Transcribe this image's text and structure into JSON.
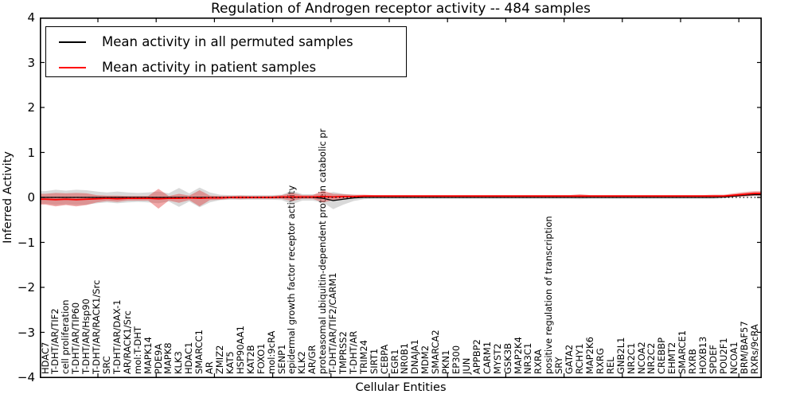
{
  "title": "Regulation of Androgen receptor activity -- 484 samples",
  "legend": {
    "items": [
      {
        "label": "Mean activity in all permuted samples",
        "color": "#000000"
      },
      {
        "label": "Mean activity in patient samples",
        "color": "#ff0000"
      }
    ]
  },
  "axes": {
    "ylabel": "Inferred Activity",
    "xlabel": "Cellular Entities",
    "yticks": [
      "4",
      "3",
      "2",
      "1",
      "0",
      "−1",
      "−2",
      "−3",
      "−4"
    ],
    "ylim": [
      -4,
      4
    ]
  },
  "chart_data": {
    "type": "line",
    "title": "Regulation of Androgen receptor activity -- 484 samples",
    "xlabel": "Cellular Entities",
    "ylabel": "Inferred Activity",
    "ylim": [
      -4,
      4
    ],
    "grid": false,
    "legend_position": "upper left",
    "zero_reference_line": 0,
    "colors": {
      "permuted_line": "#000000",
      "patient_line": "#ff0000",
      "permuted_band": "#9a9a9a",
      "patient_band": "#e03131"
    },
    "entities": [
      "HDAC7",
      "T-DHT/AR/TIF2",
      "cell proliferation",
      "T-DHT/AR/TIP60",
      "T-DHT/AR/Hsp90",
      "T-DHT/AR/RACK1/Src",
      "SRC",
      "T-DHT/AR/DAX-1",
      "AR/RACK1/Src",
      "mol:T-DHT",
      "MAPK14",
      "PDE9A",
      "MAPK8",
      "KLK3",
      "HDAC1",
      "SMARCC1",
      "AR",
      "ZMIZ2",
      "KAT5",
      "HSP90AA1",
      "KAT2B",
      "FOXO1",
      "mol:9cRA",
      "SENP1",
      "epidermal growth factor receptor activity",
      "KLK2",
      "AR/GR",
      "proteasomal ubiquitin-dependent protein catabolic pr",
      "T-DHT/AR/TIF2/CARM1",
      "TMPRSS2",
      "T-DHT/AR",
      "TRIM24",
      "SIRT1",
      "CEBPA",
      "EGR1",
      "NR0B1",
      "DNAJA1",
      "MDM2",
      "SMARCA2",
      "PKN1",
      "EP300",
      "JUN",
      "APPBP2",
      "CARM1",
      "MYST2",
      "GSK3B",
      "MAP2K4",
      "NR3C1",
      "RXRA",
      "positive regulation of transcription",
      "SRY",
      "GATA2",
      "RCHY1",
      "MAP2K6",
      "RXRG",
      "REL",
      "GNB2L1",
      "NR2C1",
      "NCOA2",
      "NR2C2",
      "CREBBP",
      "EHMT2",
      "SMARCE1",
      "RXRB",
      "HOXB13",
      "SPDEF",
      "POU2F1",
      "NCOA1",
      "BRM/BAF57",
      "RXRs/9cRA"
    ],
    "series": [
      {
        "name": "Mean activity in all permuted samples",
        "values": [
          0,
          0,
          0,
          0,
          0,
          0,
          0,
          0,
          0,
          0,
          0,
          0,
          0,
          0,
          0,
          0,
          0,
          0,
          0,
          0,
          0,
          0,
          0,
          0,
          0,
          0,
          0,
          -0.02,
          -0.07,
          -0.04,
          -0.01,
          0,
          0,
          0,
          0,
          0,
          0,
          0,
          0,
          0,
          0,
          0,
          0,
          0,
          0,
          0,
          0,
          0,
          0,
          0,
          0,
          0,
          0,
          0,
          0,
          0,
          0,
          0,
          0,
          0,
          0,
          0,
          0,
          0,
          0,
          0,
          0.01,
          0.03,
          0.05,
          0.06
        ],
        "halfwidth": [
          0.14,
          0.17,
          0.15,
          0.17,
          0.16,
          0.13,
          0.11,
          0.13,
          0.11,
          0.1,
          0.11,
          0.13,
          0.09,
          0.21,
          0.09,
          0.22,
          0.11,
          0.06,
          0.05,
          0.05,
          0.05,
          0.05,
          0.05,
          0.06,
          0.15,
          0.07,
          0.07,
          0.09,
          0.19,
          0.12,
          0.07,
          0.04,
          0.03,
          0.03,
          0.03,
          0.03,
          0.03,
          0.03,
          0.03,
          0.03,
          0.03,
          0.03,
          0.03,
          0.03,
          0.03,
          0.03,
          0.03,
          0.03,
          0.03,
          0.03,
          0.03,
          0.03,
          0.04,
          0.03,
          0.03,
          0.03,
          0.03,
          0.03,
          0.03,
          0.03,
          0.03,
          0.03,
          0.03,
          0.03,
          0.03,
          0.03,
          0.03,
          0.03,
          0.03,
          0.03
        ]
      },
      {
        "name": "Mean activity in patient samples",
        "values": [
          -0.04,
          -0.05,
          -0.04,
          -0.05,
          -0.04,
          -0.03,
          -0.02,
          -0.03,
          -0.02,
          -0.02,
          -0.02,
          -0.03,
          -0.02,
          -0.02,
          -0.01,
          -0.02,
          -0.01,
          -0.01,
          0,
          0,
          0,
          0,
          0,
          0.01,
          0.01,
          0.01,
          0.01,
          0.02,
          0.01,
          0.02,
          0.02,
          0.03,
          0.03,
          0.03,
          0.03,
          0.03,
          0.03,
          0.03,
          0.03,
          0.03,
          0.03,
          0.03,
          0.03,
          0.03,
          0.03,
          0.03,
          0.03,
          0.03,
          0.03,
          0.03,
          0.03,
          0.03,
          0.03,
          0.03,
          0.03,
          0.03,
          0.03,
          0.03,
          0.03,
          0.03,
          0.03,
          0.03,
          0.03,
          0.03,
          0.03,
          0.03,
          0.03,
          0.05,
          0.07,
          0.09
        ],
        "halfwidth": [
          0.12,
          0.15,
          0.13,
          0.15,
          0.13,
          0.08,
          0.06,
          0.07,
          0.05,
          0.05,
          0.05,
          0.22,
          0.05,
          0.1,
          0.05,
          0.18,
          0.05,
          0.04,
          0.03,
          0.04,
          0.03,
          0.03,
          0.03,
          0.04,
          0.09,
          0.04,
          0.04,
          0.13,
          0.07,
          0.05,
          0.04,
          0.03,
          0.02,
          0.02,
          0.02,
          0.02,
          0.02,
          0.02,
          0.02,
          0.02,
          0.02,
          0.02,
          0.02,
          0.02,
          0.02,
          0.02,
          0.02,
          0.02,
          0.02,
          0.02,
          0.02,
          0.02,
          0.04,
          0.02,
          0.02,
          0.02,
          0.02,
          0.02,
          0.02,
          0.02,
          0.02,
          0.02,
          0.02,
          0.02,
          0.02,
          0.03,
          0.03,
          0.04,
          0.05,
          0.05
        ]
      }
    ]
  }
}
